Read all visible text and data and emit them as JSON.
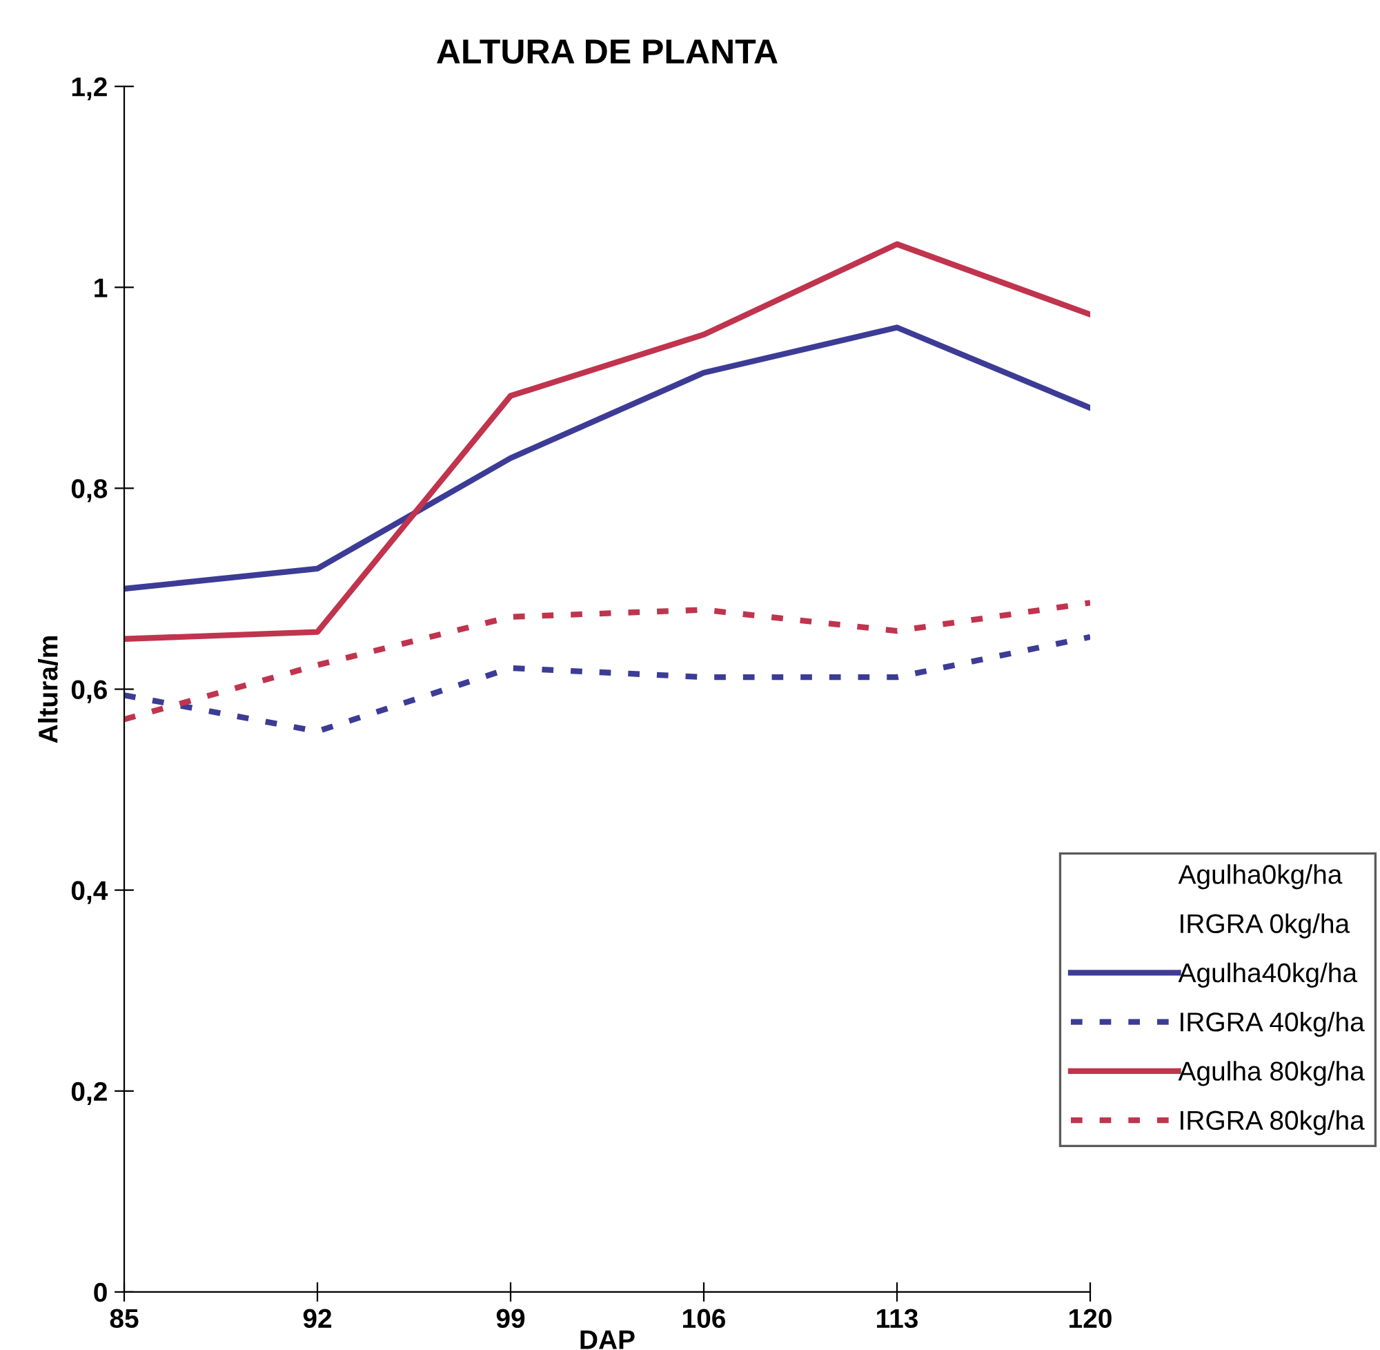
{
  "chart_data": {
    "type": "line",
    "title": "ALTURA DE PLANTA",
    "xlabel": "DAP",
    "ylabel": "Altura/m",
    "x": [
      85,
      92,
      99,
      106,
      113,
      120
    ],
    "xlim": [
      85,
      120
    ],
    "xticks": [
      85,
      92,
      99,
      106,
      113,
      120
    ],
    "ylim": [
      0,
      1.2
    ],
    "yticks": [
      0,
      {
        "value": 0.2,
        "label": "0,2"
      },
      {
        "value": 0.4,
        "label": "0,4"
      },
      {
        "value": 0.6,
        "label": "0,6"
      },
      {
        "value": 0.8,
        "label": "0,8"
      },
      1,
      {
        "value": 1.2,
        "label": "1,2"
      }
    ],
    "grid": false,
    "legend": "bottom right",
    "marker": "none",
    "series": [
      {
        "name": "Agulha0kg/ha",
        "line_style": "solid",
        "values": [
          null,
          null,
          null,
          null,
          null,
          null
        ]
      },
      {
        "name": "IRGRA 0kg/ha",
        "line_style": "dashed",
        "values": [
          null,
          null,
          null,
          null,
          null,
          null
        ]
      },
      {
        "name": "Agulha40kg/ha",
        "color": "#3c3c96",
        "line_style": "solid",
        "values": [
          0.7,
          0.72,
          0.83,
          0.915,
          0.96,
          0.88
        ]
      },
      {
        "name": "IRGRA 40kg/ha",
        "color": "#3c3c96",
        "line_style": "dashed",
        "values": [
          0.594,
          0.558,
          0.621,
          0.612,
          0.612,
          0.652
        ]
      },
      {
        "name": "Agulha 80kg/ha",
        "color": "#c0344e",
        "line_style": "solid",
        "values": [
          0.65,
          0.657,
          0.892,
          0.953,
          1.043,
          0.973
        ]
      },
      {
        "name": "IRGRA 80kg/ha",
        "color": "#c0344e",
        "line_style": "dashed",
        "values": [
          0.57,
          0.624,
          0.672,
          0.679,
          0.658,
          0.686
        ]
      }
    ]
  }
}
